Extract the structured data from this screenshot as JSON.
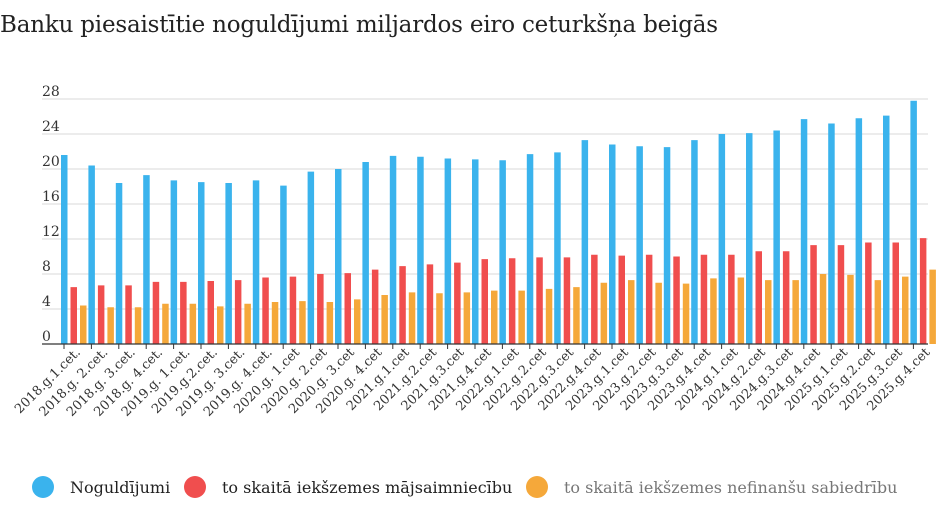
{
  "chart_data": {
    "type": "bar",
    "title": "Banku piesaistītie noguldījumi miljardos eiro ceturkšņa beigās",
    "xlabel": "",
    "ylabel": "",
    "ylim": [
      0,
      28
    ],
    "yticks": [
      0,
      4,
      8,
      12,
      16,
      20,
      24,
      28
    ],
    "grid": true,
    "legend_position": "bottom",
    "categories": [
      "2018.g.1.cet.",
      "2018.g. 2.cet.",
      "2018.g. 3.cet.",
      "2018.g. 4.cet.",
      "2019.g. 1.cet.",
      "2019.g.2.cet.",
      "2019.g. 3.cet.",
      "2019.g. 4.cet.",
      "2020.g. 1.cet",
      "2020.g. 2.cet",
      "2020.g. 3.cet",
      "2020.g. 4.cet",
      "2021.g.1.cet",
      "2021.g.2.cet",
      "2021.g.3.cet",
      "2021.g.4.cet",
      "2022.g.1.cet",
      "2022.g.2.cet",
      "2022.g.3.cet",
      "2022.g.4.cet",
      "2023.g.1.cet",
      "2023.g.2.cet",
      "2023.g.3.cet",
      "2023.g.4.cet",
      "2024.g.1.cet",
      "2024.g.2.cet",
      "2024.g.3.cet",
      "2024.g.4.cet",
      "2025.g.1.cet",
      "2025.g.2.cet",
      "2025.g.3.cet",
      "2025.g.4.cet"
    ],
    "series": [
      {
        "name": "Noguldījumi",
        "color": "#3ab3ed",
        "values": [
          21.6,
          20.4,
          18.4,
          19.3,
          18.7,
          18.5,
          18.4,
          18.7,
          18.1,
          19.7,
          20.0,
          20.8,
          21.5,
          21.4,
          21.2,
          21.1,
          21.0,
          21.7,
          21.9,
          23.3,
          22.8,
          22.6,
          22.5,
          23.3,
          24.0,
          24.1,
          24.4,
          25.7,
          25.2,
          25.8,
          26.1,
          27.8
        ]
      },
      {
        "name": "to skaitā iekšzemes mājsaimniecību",
        "color": "#f04e4e",
        "values": [
          6.5,
          6.7,
          6.7,
          7.1,
          7.1,
          7.2,
          7.3,
          7.6,
          7.7,
          8.0,
          8.1,
          8.5,
          8.9,
          9.1,
          9.3,
          9.7,
          9.8,
          9.9,
          9.9,
          10.2,
          10.1,
          10.2,
          10.0,
          10.2,
          10.2,
          10.6,
          10.6,
          11.3,
          11.3,
          11.6,
          11.6,
          12.1
        ]
      },
      {
        "name": "to skaitā iekšzemes nefinanšu sabiedrību",
        "color": "#f5a83a",
        "values": [
          4.4,
          4.2,
          4.2,
          4.6,
          4.6,
          4.3,
          4.6,
          4.8,
          4.9,
          4.8,
          5.1,
          5.6,
          5.9,
          5.8,
          5.9,
          6.1,
          6.1,
          6.3,
          6.5,
          7.0,
          7.3,
          7.0,
          6.9,
          7.5,
          7.6,
          7.3,
          7.3,
          8.0,
          7.9,
          7.3,
          7.7,
          8.5
        ]
      }
    ]
  }
}
